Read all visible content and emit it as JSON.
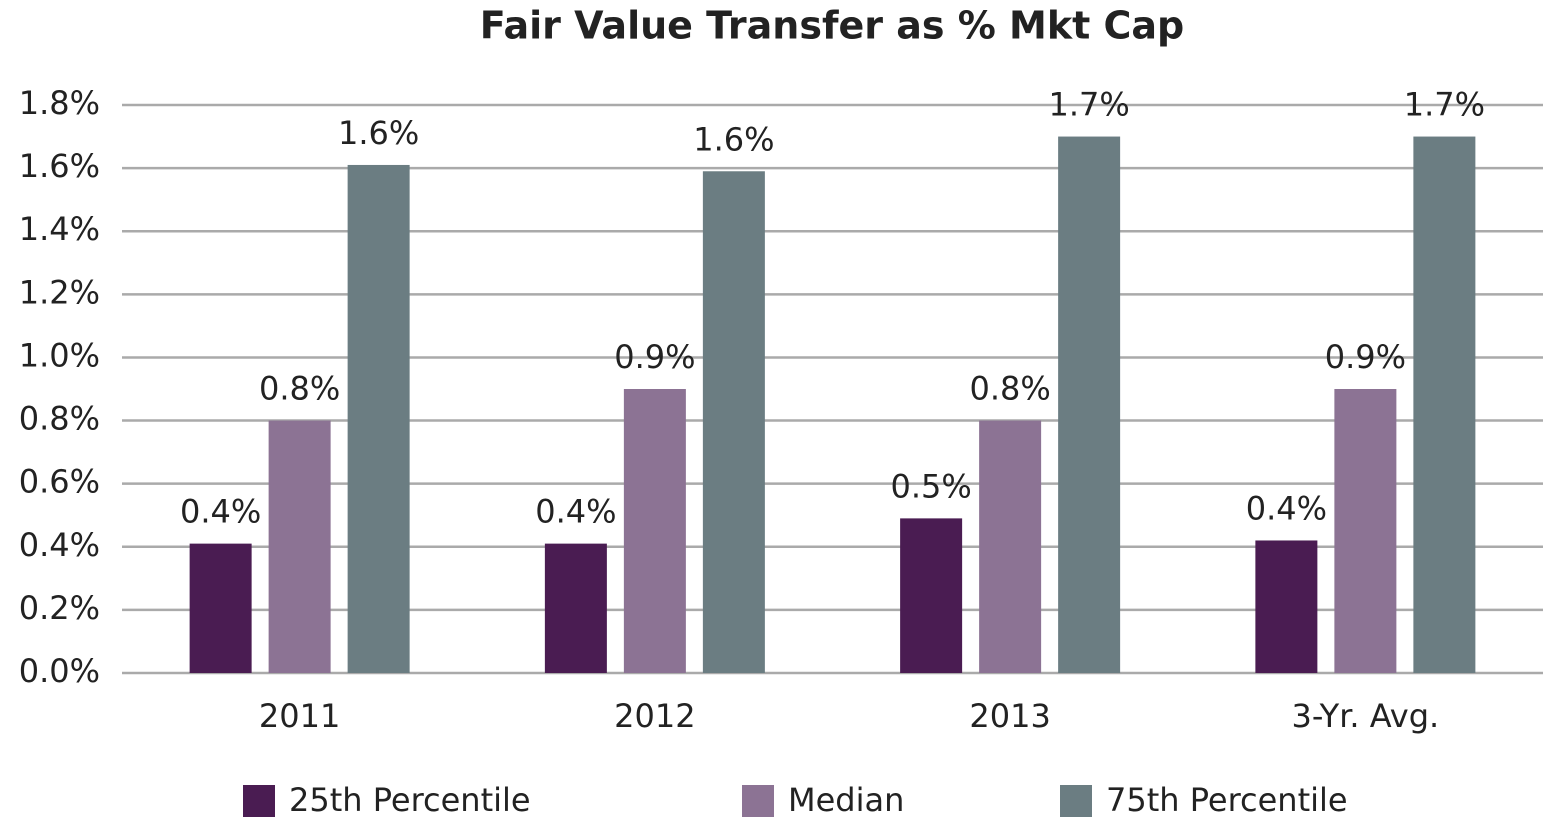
{
  "chart_data": {
    "type": "bar",
    "title": "Fair Value Transfer as % Mkt Cap",
    "categories": [
      "2011",
      "2012",
      "2013",
      "3-Yr. Avg."
    ],
    "series": [
      {
        "name": "25th Percentile",
        "color": "#4a1c52",
        "values": [
          0.41,
          0.41,
          0.49,
          0.42
        ],
        "value_labels": [
          "0.4%",
          "0.4%",
          "0.5%",
          "0.4%"
        ]
      },
      {
        "name": "Median",
        "color": "#8c7394",
        "values": [
          0.8,
          0.9,
          0.8,
          0.9
        ],
        "value_labels": [
          "0.8%",
          "0.9%",
          "0.8%",
          "0.9%"
        ]
      },
      {
        "name": "75th Percentile",
        "color": "#6b7d82",
        "values": [
          1.61,
          1.59,
          1.7,
          1.7
        ],
        "value_labels": [
          "1.6%",
          "1.6%",
          "1.7%",
          "1.7%"
        ]
      }
    ],
    "ylim": [
      0,
      1.8
    ],
    "yticks": [
      {
        "value": 0,
        "label": "0.0%"
      },
      {
        "value": 0.2,
        "label": "0.2%"
      },
      {
        "value": 0.4,
        "label": "0.4%"
      },
      {
        "value": 0.6,
        "label": "0.6%"
      },
      {
        "value": 0.8,
        "label": "0.8%"
      },
      {
        "value": 1.0,
        "label": "1.0%"
      },
      {
        "value": 1.2,
        "label": "1.2%"
      },
      {
        "value": 1.4,
        "label": "1.4%"
      },
      {
        "value": 1.6,
        "label": "1.6%"
      },
      {
        "value": 1.8,
        "label": "1.8%"
      }
    ],
    "grid": true,
    "legend": "bottom"
  }
}
